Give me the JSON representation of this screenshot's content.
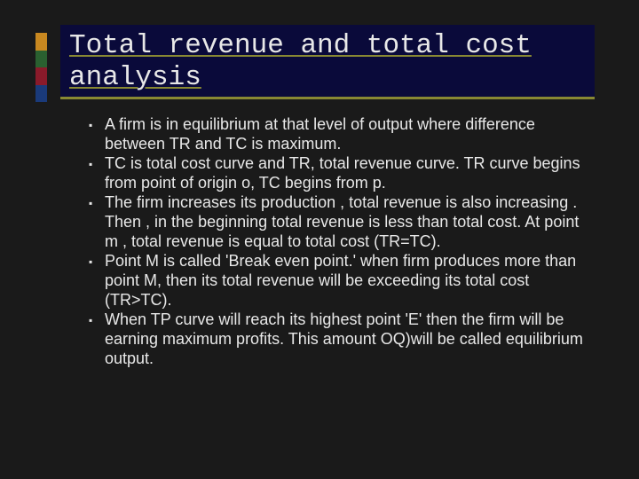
{
  "title": "Total revenue and total cost analysis",
  "accent_colors": [
    "#c88820",
    "#2a6030",
    "#8a1a2a",
    "#1a3a7a"
  ],
  "title_box_bg": "#0a0a3a",
  "title_underline_color": "#888833",
  "slide_bg": "#1a1a1a",
  "text_color": "#e8e8e8",
  "title_font": "Courier New",
  "body_font": "Segoe UI",
  "title_fontsize": 31,
  "body_fontsize": 18,
  "bullets": [
    "A firm is in equilibrium at that level of output where difference between TR and TC is maximum.",
    "TC is total cost curve and TR, total revenue curve. TR curve begins from point of origin o, TC begins from p.",
    "The firm  increases its production , total revenue is also increasing . Then , in the beginning total revenue is less than total cost. At point m , total revenue is equal to total cost (TR=TC).",
    "Point M is called 'Break even point.' when  firm produces more than point M, then its total revenue will be exceeding its total cost (TR>TC).",
    "When TP curve will reach its highest point  'E' then the firm will be earning maximum profits. This amount OQ)will be called equilibrium output."
  ]
}
